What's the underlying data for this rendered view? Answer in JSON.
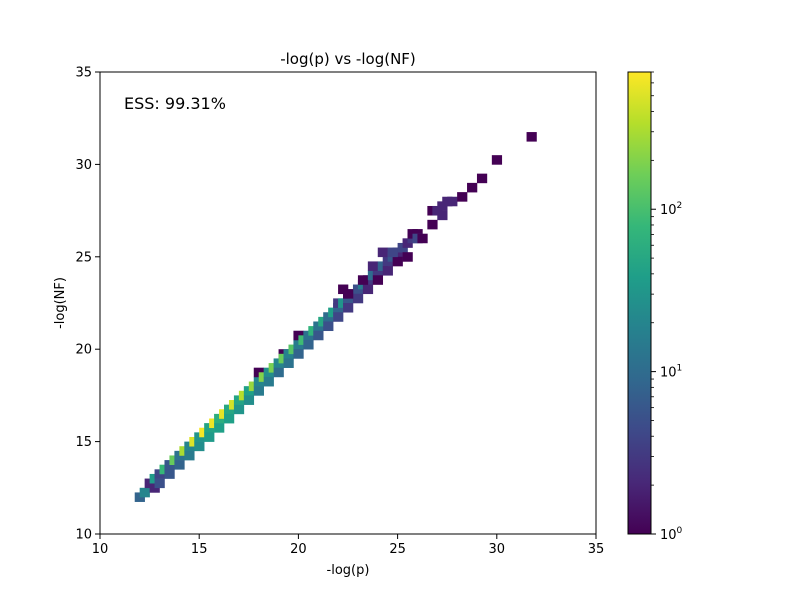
{
  "chart_data": {
    "type": "heatmap",
    "title": "-log(p) vs -log(NF)",
    "xlabel": "-log(p)",
    "ylabel": "-log(NF)",
    "xlim": [
      10,
      35
    ],
    "ylim": [
      10,
      35
    ],
    "xticks": [
      10,
      15,
      20,
      25,
      30,
      35
    ],
    "yticks": [
      10,
      15,
      20,
      25,
      30,
      35
    ],
    "annotation": "ESS: 99.31%",
    "grid": false,
    "bin_size": 0.5,
    "colorbar": {
      "scale": "log",
      "colormap": "viridis",
      "min": 1,
      "max": 700,
      "ticks": [
        {
          "value": 1,
          "base": "10",
          "exp": "0"
        },
        {
          "value": 10,
          "base": "10",
          "exp": "1"
        },
        {
          "value": 100,
          "base": "10",
          "exp": "2"
        }
      ]
    },
    "bins": [
      [
        12.0,
        12.0,
        8
      ],
      [
        12.25,
        12.25,
        20
      ],
      [
        12.5,
        12.75,
        2
      ],
      [
        12.75,
        12.5,
        2
      ],
      [
        12.75,
        13.0,
        35
      ],
      [
        13.0,
        13.25,
        4
      ],
      [
        13.0,
        12.75,
        5
      ],
      [
        13.25,
        13.5,
        80
      ],
      [
        13.5,
        13.75,
        6
      ],
      [
        13.5,
        13.25,
        6
      ],
      [
        13.75,
        14.0,
        150
      ],
      [
        14.0,
        14.25,
        12
      ],
      [
        14.0,
        13.75,
        8
      ],
      [
        14.25,
        14.5,
        300
      ],
      [
        14.5,
        14.75,
        20
      ],
      [
        14.5,
        14.25,
        15
      ],
      [
        14.75,
        15.0,
        500
      ],
      [
        15.0,
        15.25,
        30
      ],
      [
        15.0,
        14.75,
        25
      ],
      [
        15.25,
        15.5,
        650
      ],
      [
        15.5,
        15.75,
        45
      ],
      [
        15.5,
        15.25,
        35
      ],
      [
        15.75,
        16.0,
        600
      ],
      [
        16.0,
        16.25,
        60
      ],
      [
        16.0,
        15.75,
        40
      ],
      [
        16.25,
        16.5,
        550
      ],
      [
        16.5,
        16.75,
        50
      ],
      [
        16.5,
        16.25,
        40
      ],
      [
        16.75,
        17.0,
        450
      ],
      [
        17.0,
        17.25,
        45
      ],
      [
        17.0,
        16.75,
        30
      ],
      [
        17.25,
        17.5,
        350
      ],
      [
        17.5,
        17.75,
        40
      ],
      [
        17.5,
        17.25,
        25
      ],
      [
        17.75,
        18.0,
        250
      ],
      [
        18.0,
        18.25,
        20
      ],
      [
        18.0,
        17.75,
        15
      ],
      [
        18.0,
        18.75,
        1
      ],
      [
        18.25,
        18.5,
        200
      ],
      [
        18.5,
        18.75,
        25
      ],
      [
        18.5,
        18.25,
        15
      ],
      [
        18.75,
        19.0,
        180
      ],
      [
        19.0,
        19.25,
        20
      ],
      [
        19.0,
        18.75,
        10
      ],
      [
        19.25,
        19.75,
        1
      ],
      [
        19.25,
        19.5,
        150
      ],
      [
        19.5,
        19.75,
        18
      ],
      [
        19.5,
        19.25,
        12
      ],
      [
        19.75,
        20.0,
        120
      ],
      [
        20.0,
        20.25,
        15
      ],
      [
        20.0,
        19.75,
        8
      ],
      [
        20.0,
        20.75,
        1
      ],
      [
        20.25,
        20.5,
        90
      ],
      [
        20.5,
        20.75,
        12
      ],
      [
        20.5,
        20.25,
        8
      ],
      [
        20.75,
        21.0,
        70
      ],
      [
        21.0,
        21.25,
        12
      ],
      [
        21.0,
        20.75,
        6
      ],
      [
        21.25,
        21.5,
        50
      ],
      [
        21.5,
        21.75,
        10
      ],
      [
        21.5,
        21.25,
        5
      ],
      [
        21.75,
        22.0,
        40
      ],
      [
        22.0,
        22.25,
        8
      ],
      [
        22.0,
        21.75,
        4
      ],
      [
        22.0,
        22.5,
        3
      ],
      [
        22.25,
        22.5,
        30
      ],
      [
        22.5,
        22.75,
        6
      ],
      [
        22.5,
        22.25,
        3
      ],
      [
        22.25,
        23.25,
        1
      ],
      [
        22.75,
        23.0,
        25
      ],
      [
        23.0,
        23.25,
        5
      ],
      [
        23.0,
        22.75,
        3
      ],
      [
        22.5,
        23.0,
        1
      ],
      [
        23.25,
        23.5,
        15
      ],
      [
        23.5,
        23.75,
        3
      ],
      [
        23.5,
        23.25,
        2
      ],
      [
        23.25,
        23.75,
        1
      ],
      [
        23.75,
        24.0,
        10
      ],
      [
        24.0,
        24.25,
        3
      ],
      [
        24.0,
        23.75,
        1
      ],
      [
        23.75,
        24.5,
        2
      ],
      [
        24.25,
        24.5,
        8
      ],
      [
        24.5,
        24.75,
        3
      ],
      [
        24.5,
        24.25,
        2
      ],
      [
        24.25,
        25.25,
        2
      ],
      [
        24.75,
        25.0,
        6
      ],
      [
        25.0,
        25.25,
        2
      ],
      [
        25.0,
        24.75,
        1
      ],
      [
        24.75,
        25.25,
        4
      ],
      [
        25.25,
        25.5,
        4
      ],
      [
        25.5,
        25.75,
        2
      ],
      [
        25.5,
        25.0,
        1
      ],
      [
        25.75,
        26.0,
        3
      ],
      [
        25.75,
        26.25,
        1
      ],
      [
        26.0,
        26.25,
        1
      ],
      [
        26.0,
        26.0,
        4
      ],
      [
        26.25,
        26.0,
        1
      ],
      [
        26.75,
        26.75,
        1
      ],
      [
        26.75,
        27.5,
        1
      ],
      [
        27.0,
        27.5,
        2
      ],
      [
        27.25,
        27.25,
        2
      ],
      [
        27.25,
        27.75,
        2
      ],
      [
        27.5,
        28.0,
        2
      ],
      [
        27.75,
        28.0,
        2
      ],
      [
        28.25,
        28.25,
        1
      ],
      [
        28.75,
        28.75,
        1
      ],
      [
        29.25,
        29.25,
        1
      ],
      [
        30.0,
        30.25,
        1
      ],
      [
        31.75,
        31.5,
        1
      ]
    ]
  }
}
